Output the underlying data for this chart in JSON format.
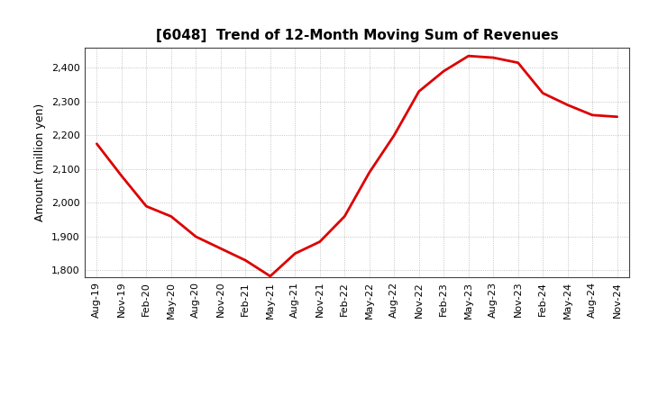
{
  "title": "[6048]  Trend of 12-Month Moving Sum of Revenues",
  "ylabel": "Amount (million yen)",
  "line_color": "#dd0000",
  "line_width": 2.0,
  "background_color": "#ffffff",
  "plot_bg_color": "#ffffff",
  "grid_color": "#999999",
  "ylim": [
    1780,
    2460
  ],
  "yticks": [
    1800,
    1900,
    2000,
    2100,
    2200,
    2300,
    2400
  ],
  "x_labels": [
    "Aug-19",
    "Nov-19",
    "Feb-20",
    "May-20",
    "Aug-20",
    "Nov-20",
    "Feb-21",
    "May-21",
    "Aug-21",
    "Nov-21",
    "Feb-22",
    "May-22",
    "Aug-22",
    "Nov-22",
    "Feb-23",
    "May-23",
    "Aug-23",
    "Nov-23",
    "Feb-24",
    "May-24",
    "Aug-24",
    "Nov-24"
  ],
  "y_values": [
    2175,
    2080,
    1990,
    1960,
    1900,
    1865,
    1830,
    1783,
    1850,
    1885,
    1960,
    2090,
    2200,
    2330,
    2390,
    2435,
    2430,
    2415,
    2325,
    2290,
    2260,
    2255
  ]
}
